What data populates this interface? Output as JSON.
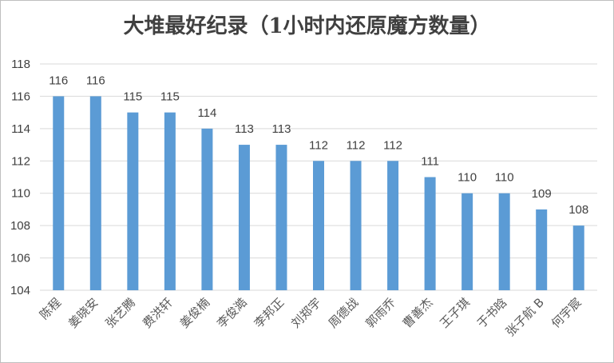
{
  "chart_data": {
    "type": "bar",
    "title": "大堆最好纪录（1小时内还原魔方数量）",
    "xlabel": "",
    "ylabel": "",
    "ylim": [
      104,
      118
    ],
    "ytick_step": 2,
    "grid": true,
    "legend": "none",
    "colors": {
      "bar": "#5b9bd5",
      "grid": "#d9d9d9",
      "text": "#404040"
    },
    "categories": [
      "陈程",
      "姜晓安",
      "张艺腾",
      "费洪轩",
      "姜俊楠",
      "李俊澔",
      "李邦正",
      "刘郑宇",
      "周德战",
      "郭雨乔",
      "曹善杰",
      "王子琪",
      "于书晗",
      "张子航 B",
      "何宇宸"
    ],
    "values": [
      116,
      116,
      115,
      115,
      114,
      113,
      113,
      112,
      112,
      112,
      111,
      110,
      110,
      109,
      108
    ]
  }
}
